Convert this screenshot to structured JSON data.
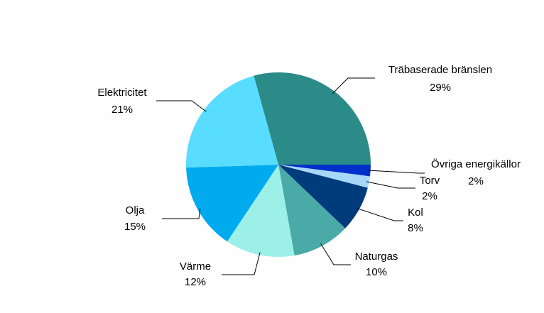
{
  "chart_data": {
    "type": "pie",
    "categories": [
      "Träbaserade bränslen",
      "Övriga energikällor",
      "Torv",
      "Kol",
      "Naturgas",
      "Värme",
      "Olja",
      "Elektricitet"
    ],
    "values": [
      29,
      2,
      2,
      8,
      10,
      12,
      15,
      21
    ],
    "value_labels": [
      "29%",
      "2%",
      "2%",
      "8%",
      "10%",
      "12%",
      "15%",
      "21%"
    ],
    "colors": [
      "#2a8b88",
      "#0030cc",
      "#a8d8f8",
      "#003c7c",
      "#4aaaa8",
      "#9cf0e8",
      "#00aaee",
      "#58dcff"
    ]
  }
}
